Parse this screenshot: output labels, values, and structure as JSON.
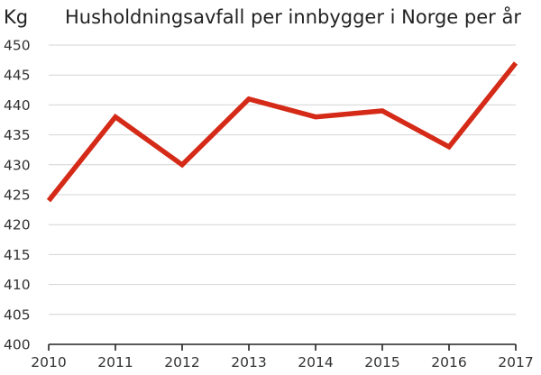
{
  "chart_data": {
    "type": "line",
    "title": "Husholdningsavfall per innbygger i Norge per år",
    "ylabel": "Kg",
    "xlabel": "",
    "x": [
      "2010",
      "2011",
      "2012",
      "2013",
      "2014",
      "2015",
      "2016",
      "2017"
    ],
    "series": [
      {
        "values": [
          424,
          438,
          430,
          441,
          438,
          439,
          433,
          447
        ]
      }
    ],
    "ylim": [
      400,
      450
    ],
    "yticks": [
      400,
      405,
      410,
      415,
      420,
      425,
      430,
      435,
      440,
      445,
      450
    ],
    "grid": true,
    "legend": "none",
    "colors": {
      "series": "#d42a17",
      "grid": "#d4d4d4",
      "axis": "#222222"
    }
  }
}
